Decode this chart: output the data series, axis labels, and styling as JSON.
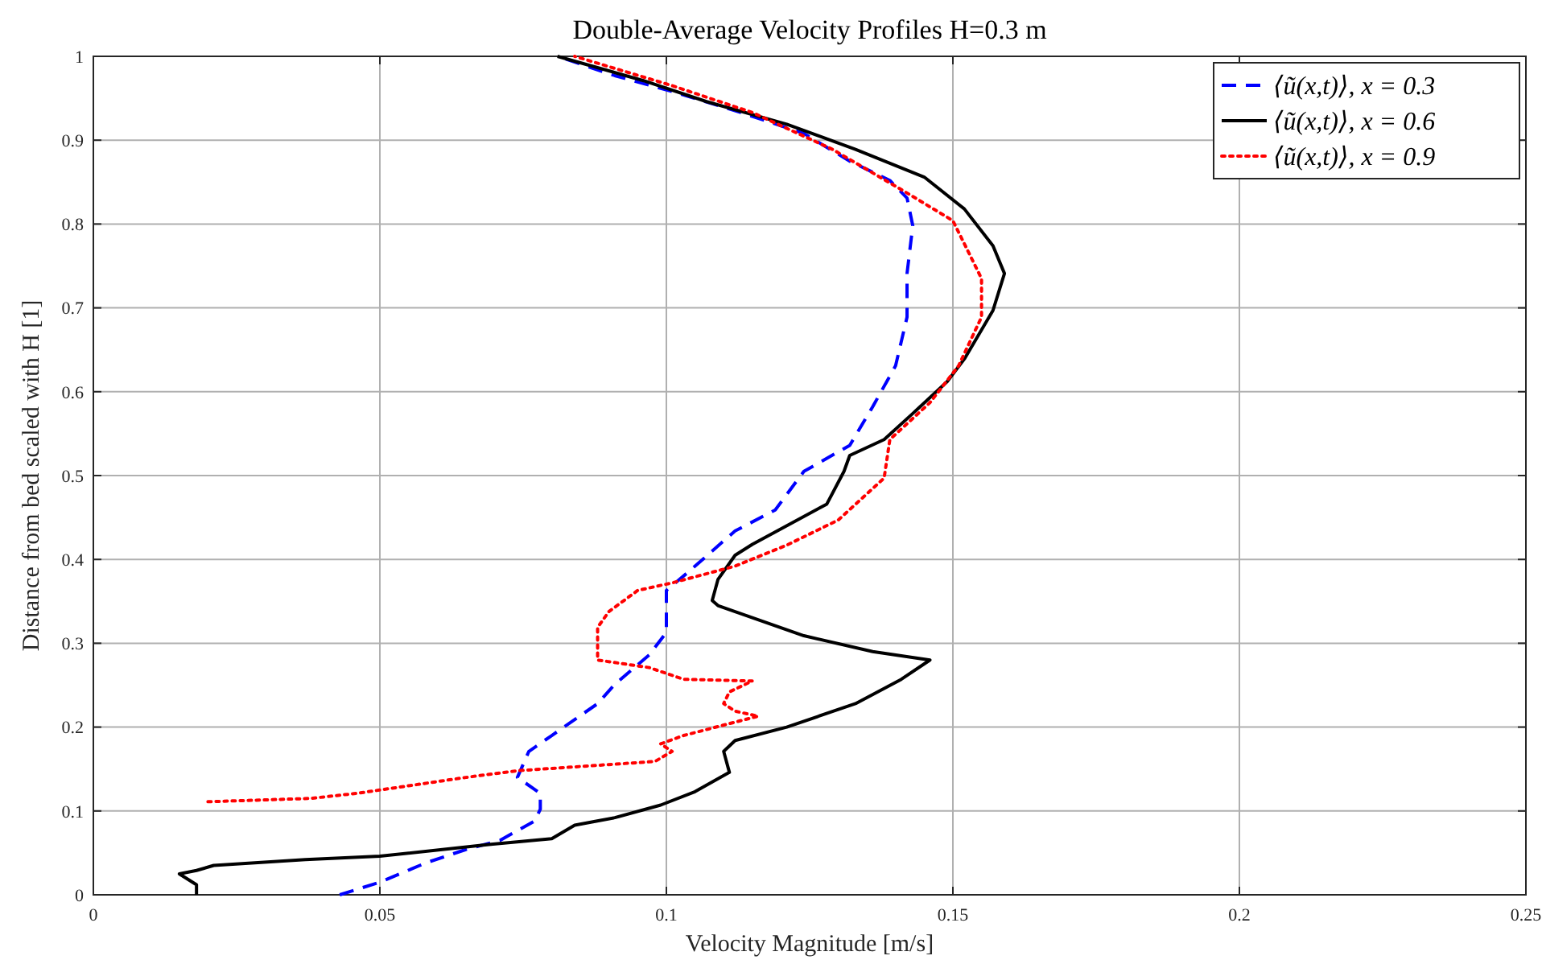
{
  "chart_data": {
    "type": "line",
    "title": "Double-Average Velocity Profiles H=0.3 m",
    "xlabel": "Velocity Magnitude [m/s]",
    "ylabel": "Distance from bed scaled with H [1]",
    "xlim": [
      0,
      0.25
    ],
    "ylim": [
      0,
      1
    ],
    "xticks": [
      0,
      0.05,
      0.1,
      0.15,
      0.2,
      0.25
    ],
    "yticks": [
      0,
      0.1,
      0.2,
      0.3,
      0.4,
      0.5,
      0.6,
      0.7,
      0.8,
      0.9,
      1
    ],
    "grid": true,
    "legend": "top right",
    "series": [
      {
        "name": "⟨ũ(x,t)⟩, x = 0.3",
        "color": "#0000ff",
        "line_style": "dashed",
        "x": [
          0.043,
          0.05,
          0.058,
          0.065,
          0.071,
          0.077,
          0.078,
          0.078,
          0.074,
          0.076,
          0.08,
          0.088,
          0.091,
          0.097,
          0.1,
          0.1,
          0.1,
          0.104,
          0.112,
          0.119,
          0.124,
          0.132,
          0.136,
          0.14,
          0.142,
          0.142,
          0.143,
          0.142,
          0.139,
          0.132,
          0.124,
          0.113,
          0.101,
          0.091,
          0.081
        ],
        "values": [
          0,
          0.015,
          0.038,
          0.054,
          0.065,
          0.088,
          0.102,
          0.121,
          0.14,
          0.171,
          0.19,
          0.228,
          0.251,
          0.286,
          0.313,
          0.338,
          0.363,
          0.386,
          0.434,
          0.459,
          0.505,
          0.536,
          0.582,
          0.631,
          0.689,
          0.741,
          0.798,
          0.831,
          0.852,
          0.875,
          0.908,
          0.933,
          0.958,
          0.977,
          1
        ]
      },
      {
        "name": "⟨ũ(x,t)⟩, x = 0.6",
        "color": "#000000",
        "line_style": "solid",
        "x": [
          0.018,
          0.018,
          0.015,
          0.018,
          0.021,
          0.037,
          0.05,
          0.069,
          0.08,
          0.084,
          0.091,
          0.099,
          0.105,
          0.111,
          0.11,
          0.112,
          0.121,
          0.133,
          0.141,
          0.146,
          0.136,
          0.124,
          0.116,
          0.109,
          0.108,
          0.109,
          0.112,
          0.115,
          0.128,
          0.131,
          0.132,
          0.138,
          0.143,
          0.149,
          0.152,
          0.157,
          0.159,
          0.157,
          0.152,
          0.145,
          0.133,
          0.121,
          0.107,
          0.096,
          0.081
        ],
        "values": [
          0,
          0.012,
          0.025,
          0.029,
          0.035,
          0.042,
          0.046,
          0.06,
          0.067,
          0.083,
          0.092,
          0.107,
          0.123,
          0.146,
          0.171,
          0.184,
          0.2,
          0.228,
          0.257,
          0.28,
          0.29,
          0.309,
          0.328,
          0.345,
          0.351,
          0.376,
          0.405,
          0.418,
          0.466,
          0.505,
          0.524,
          0.543,
          0.574,
          0.612,
          0.639,
          0.697,
          0.741,
          0.774,
          0.818,
          0.856,
          0.889,
          0.919,
          0.946,
          0.971,
          1
        ]
      },
      {
        "name": "⟨ũ(x,t)⟩, x = 0.9",
        "color": "#ff0000",
        "line_style": "dotted",
        "x": [
          0.02,
          0.038,
          0.046,
          0.065,
          0.074,
          0.098,
          0.101,
          0.099,
          0.103,
          0.116,
          0.112,
          0.11,
          0.111,
          0.115,
          0.103,
          0.097,
          0.088,
          0.088,
          0.088,
          0.09,
          0.095,
          0.101,
          0.112,
          0.121,
          0.13,
          0.138,
          0.139,
          0.146,
          0.151,
          0.155,
          0.155,
          0.15,
          0.142,
          0.129,
          0.115,
          0.101,
          0.084
        ],
        "values": [
          0.111,
          0.115,
          0.121,
          0.14,
          0.148,
          0.159,
          0.171,
          0.18,
          0.19,
          0.213,
          0.219,
          0.228,
          0.242,
          0.255,
          0.257,
          0.271,
          0.28,
          0.299,
          0.319,
          0.338,
          0.363,
          0.372,
          0.392,
          0.417,
          0.447,
          0.497,
          0.543,
          0.587,
          0.631,
          0.689,
          0.735,
          0.804,
          0.837,
          0.889,
          0.933,
          0.965,
          1
        ]
      }
    ]
  }
}
